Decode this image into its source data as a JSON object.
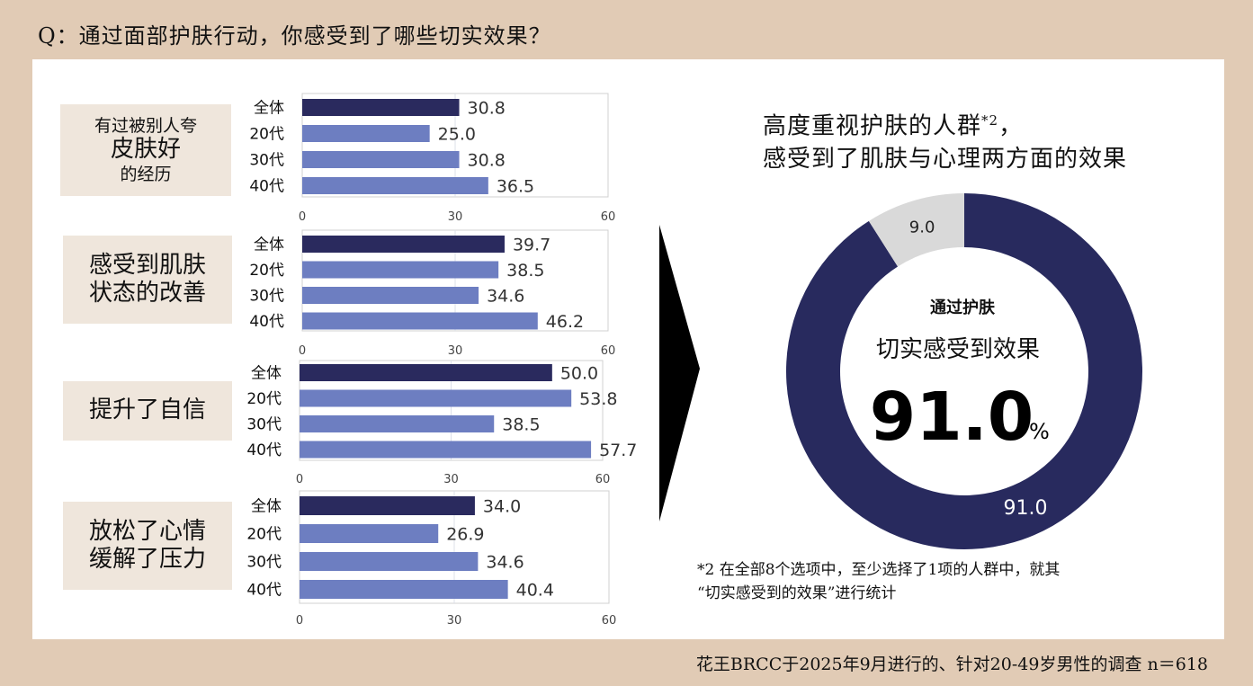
{
  "question": "Q：通过面部护肤行动，你感受到了哪些切实效果？",
  "footer": "花王BRCC于2025年9月进行的、针对20-49岁男性的调查 n＝618",
  "colors": {
    "overall": "#2a2a5e",
    "age": "#6d7ec1",
    "donut_main": "#282a5e",
    "donut_rest": "#d9d9d9",
    "background": "#e1cbb5",
    "label_box": "#efe6dc"
  },
  "categories": [
    {
      "lines": [
        {
          "text": "有过被别人夸",
          "size": "s"
        },
        {
          "text": "皮肤好",
          "size": "l"
        },
        {
          "text": "的经历",
          "size": "s"
        }
      ]
    },
    {
      "lines": [
        {
          "text": "感受到肌肤",
          "size": "l"
        },
        {
          "text": "状态的改善",
          "size": "l"
        }
      ]
    },
    {
      "lines": [
        {
          "text": "提升了自信",
          "size": "l"
        }
      ]
    },
    {
      "lines": [
        {
          "text": "放松了心情",
          "size": "l"
        },
        {
          "text": "缓解了压力",
          "size": "l"
        }
      ]
    }
  ],
  "donut_heading": {
    "line1": "高度重视护肤的人群",
    "sup": "*2",
    "line1_end": "，",
    "line2": "感受到了肌肤与心理两方面的效果"
  },
  "donut_center": {
    "line1": "通过护肤",
    "line2": "切实感受到效果",
    "big": "91.0",
    "unit": "%"
  },
  "note": {
    "line1": "*2  在全部8个选项中，至少选择了1项的人群中，就其",
    "line2": "“切实感受到的效果”进行统计"
  },
  "chart_data": [
    {
      "type": "bar",
      "orientation": "horizontal",
      "categories": [
        "全体",
        "20代",
        "30代",
        "40代"
      ],
      "values": [
        30.8,
        25.0,
        30.8,
        36.5
      ],
      "xlim": [
        0,
        60
      ],
      "xticks": [
        0,
        30,
        60
      ],
      "grid": true
    },
    {
      "type": "bar",
      "orientation": "horizontal",
      "categories": [
        "全体",
        "20代",
        "30代",
        "40代"
      ],
      "values": [
        39.7,
        38.5,
        34.6,
        46.2
      ],
      "xlim": [
        0,
        60
      ],
      "xticks": [
        0,
        30,
        60
      ],
      "grid": true
    },
    {
      "type": "bar",
      "orientation": "horizontal",
      "categories": [
        "全体",
        "20代",
        "30代",
        "40代"
      ],
      "values": [
        50.0,
        53.8,
        38.5,
        57.7
      ],
      "xlim": [
        0,
        60
      ],
      "xticks": [
        0,
        30,
        60
      ],
      "grid": true
    },
    {
      "type": "bar",
      "orientation": "horizontal",
      "categories": [
        "全体",
        "20代",
        "30代",
        "40代"
      ],
      "values": [
        34.0,
        26.9,
        34.6,
        40.4
      ],
      "xlim": [
        0,
        60
      ],
      "xticks": [
        0,
        30,
        60
      ],
      "grid": true
    },
    {
      "type": "pie",
      "donut": true,
      "slices": [
        {
          "label": "91.0",
          "value": 91.0
        },
        {
          "label": "9.0",
          "value": 9.0
        }
      ]
    }
  ]
}
